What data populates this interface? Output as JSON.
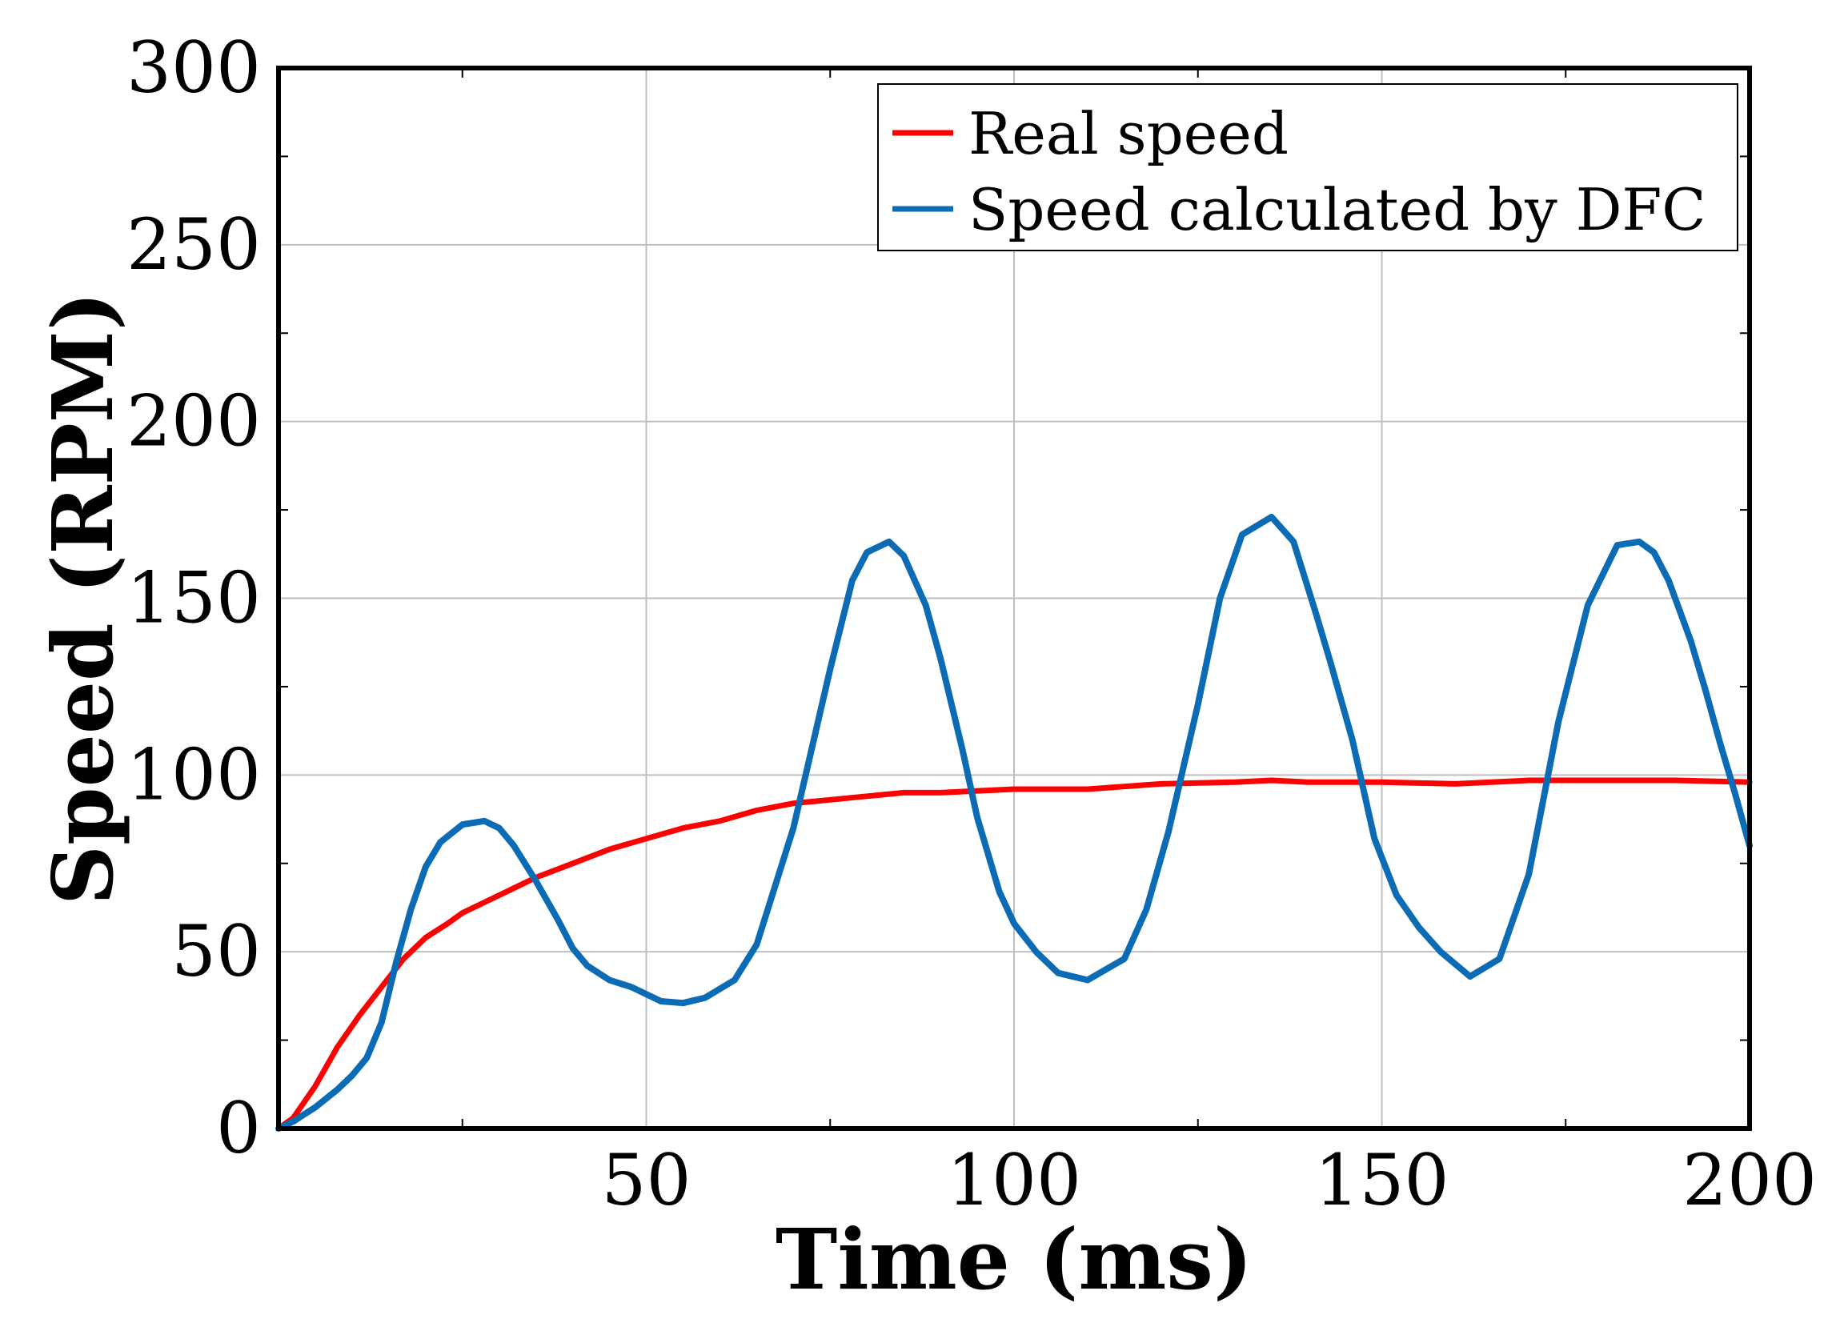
{
  "chart_data": {
    "type": "line",
    "title": "",
    "xlabel": "Time (ms)",
    "ylabel": "Speed (RPM)",
    "xlim": [
      0,
      200
    ],
    "ylim": [
      0,
      300
    ],
    "xticks": [
      50,
      100,
      150,
      200
    ],
    "xtick_labels": [
      "50",
      "100",
      "150",
      "200"
    ],
    "yticks": [
      0,
      50,
      100,
      150,
      200,
      250,
      300
    ],
    "ytick_labels": [
      "0",
      "50",
      "100",
      "150",
      "200",
      "250",
      "300"
    ],
    "grid": true,
    "legend_position": "top-right",
    "series": [
      {
        "name": "Real speed",
        "color": "#ff0000",
        "x": [
          0,
          2,
          5,
          8,
          11,
          14,
          17,
          20,
          23,
          25,
          30,
          35,
          40,
          45,
          50,
          55,
          60,
          65,
          70,
          75,
          80,
          85,
          90,
          100,
          110,
          120,
          130,
          135,
          140,
          150,
          160,
          170,
          180,
          187,
          190,
          200
        ],
        "y": [
          0,
          3,
          12,
          23,
          32,
          40,
          48,
          54,
          58,
          61,
          66,
          71,
          75,
          79,
          82,
          85,
          87,
          90,
          92,
          93,
          94,
          95,
          95,
          96,
          96,
          97.5,
          98,
          98.5,
          98,
          98,
          97.5,
          98.5,
          98.5,
          98.5,
          98.5,
          98
        ]
      },
      {
        "name": "Speed calculated by DFC",
        "color": "#0b6cb5",
        "x": [
          0,
          2,
          5,
          8,
          10,
          12,
          14,
          16,
          18,
          20,
          22,
          25,
          28,
          30,
          32,
          35,
          38,
          40,
          42,
          45,
          48,
          50,
          52,
          55,
          58,
          62,
          65,
          70,
          75,
          78,
          80,
          83,
          85,
          88,
          90,
          93,
          95,
          98,
          100,
          103,
          106,
          110,
          115,
          118,
          121,
          125,
          128,
          131,
          135,
          138,
          141,
          143,
          146,
          149,
          152,
          155,
          158,
          162,
          166,
          170,
          174,
          178,
          182,
          185,
          187,
          189,
          192,
          194,
          196,
          198,
          200
        ],
        "y": [
          0,
          2,
          6,
          11,
          15,
          20,
          30,
          47,
          62,
          74,
          81,
          86,
          87,
          85,
          80,
          70,
          59,
          51,
          46,
          42,
          40,
          38,
          36,
          35.5,
          37,
          42,
          52,
          85,
          130,
          155,
          163,
          166,
          162,
          148,
          133,
          107,
          88,
          67,
          58,
          50,
          44,
          42,
          48,
          62,
          84,
          120,
          150,
          168,
          173,
          166,
          146,
          132,
          110,
          82,
          66,
          57,
          50,
          43,
          48,
          72,
          115,
          148,
          165,
          166,
          163,
          155,
          138,
          124,
          109,
          95,
          80
        ]
      }
    ]
  }
}
